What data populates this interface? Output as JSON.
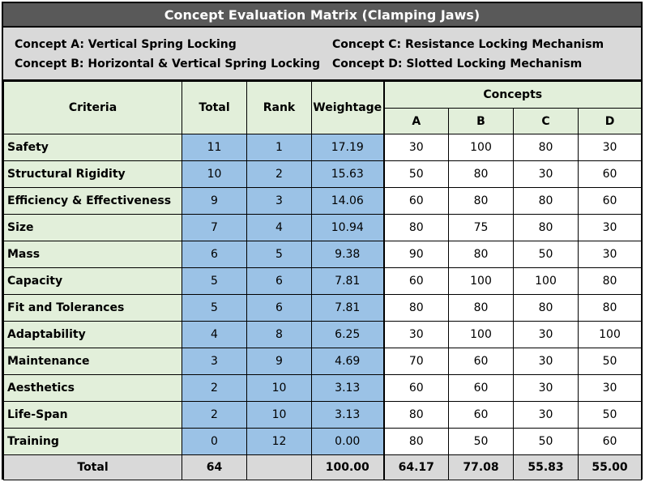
{
  "title": "Concept Evaluation Matrix (Clamping Jaws)",
  "legend": {
    "a": "Concept A: Vertical Spring Locking",
    "b": "Concept B: Horizontal & Vertical Spring Locking",
    "c": "Concept C: Resistance Locking Mechanism",
    "d": "Concept D: Slotted Locking Mechanism"
  },
  "headers": {
    "criteria": "Criteria",
    "total": "Total",
    "rank": "Rank",
    "weightage": "Weightage",
    "concepts": "Concepts",
    "a": "A",
    "b": "B",
    "c": "C",
    "d": "D"
  },
  "rows": [
    {
      "criteria": "Safety",
      "total": "11",
      "rank": "1",
      "weightage": "17.19",
      "a": "30",
      "b": "100",
      "c": "80",
      "d": "30"
    },
    {
      "criteria": "Structural Rigidity",
      "total": "10",
      "rank": "2",
      "weightage": "15.63",
      "a": "50",
      "b": "80",
      "c": "30",
      "d": "60"
    },
    {
      "criteria": "Efficiency & Effectiveness",
      "total": "9",
      "rank": "3",
      "weightage": "14.06",
      "a": "60",
      "b": "80",
      "c": "80",
      "d": "60"
    },
    {
      "criteria": "Size",
      "total": "7",
      "rank": "4",
      "weightage": "10.94",
      "a": "80",
      "b": "75",
      "c": "80",
      "d": "30"
    },
    {
      "criteria": "Mass",
      "total": "6",
      "rank": "5",
      "weightage": "9.38",
      "a": "90",
      "b": "80",
      "c": "50",
      "d": "30"
    },
    {
      "criteria": "Capacity",
      "total": "5",
      "rank": "6",
      "weightage": "7.81",
      "a": "60",
      "b": "100",
      "c": "100",
      "d": "80"
    },
    {
      "criteria": "Fit and Tolerances",
      "total": "5",
      "rank": "6",
      "weightage": "7.81",
      "a": "80",
      "b": "80",
      "c": "80",
      "d": "80"
    },
    {
      "criteria": "Adaptability",
      "total": "4",
      "rank": "8",
      "weightage": "6.25",
      "a": "30",
      "b": "100",
      "c": "30",
      "d": "100"
    },
    {
      "criteria": "Maintenance",
      "total": "3",
      "rank": "9",
      "weightage": "4.69",
      "a": "70",
      "b": "60",
      "c": "30",
      "d": "50"
    },
    {
      "criteria": "Aesthetics",
      "total": "2",
      "rank": "10",
      "weightage": "3.13",
      "a": "60",
      "b": "60",
      "c": "30",
      "d": "30"
    },
    {
      "criteria": "Life-Span",
      "total": "2",
      "rank": "10",
      "weightage": "3.13",
      "a": "80",
      "b": "60",
      "c": "30",
      "d": "50"
    },
    {
      "criteria": "Training",
      "total": "0",
      "rank": "12",
      "weightage": "0.00",
      "a": "80",
      "b": "50",
      "c": "50",
      "d": "60"
    }
  ],
  "totals": {
    "label": "Total",
    "total": "64",
    "rank": "",
    "weightage": "100.00",
    "a": "64.17",
    "b": "77.08",
    "c": "55.83",
    "d": "55.00"
  }
}
